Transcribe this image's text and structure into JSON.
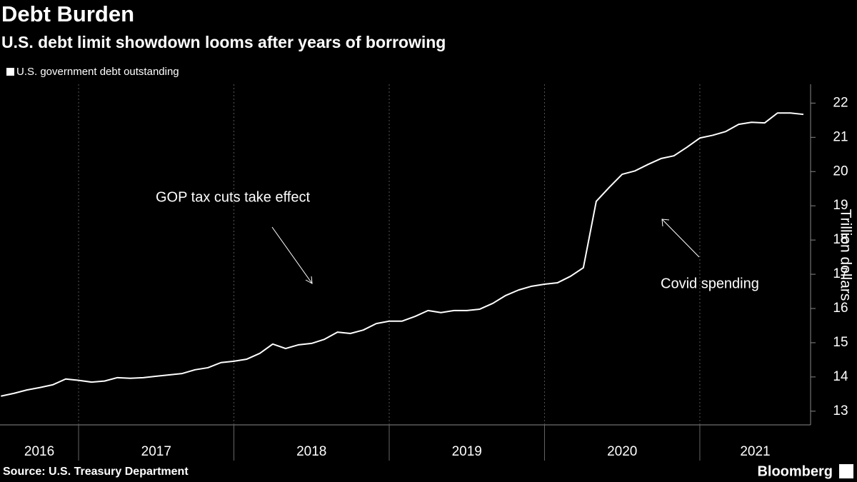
{
  "chart_data": {
    "type": "line",
    "title": "Debt Burden",
    "subtitle": "U.S. debt limit showdown looms after years of borrowing",
    "y_label": "Trillion dollars",
    "source": "Source: U.S. Treasury Department",
    "brand": "Bloomberg",
    "annotations": [
      "GOP tax cuts take effect",
      "Covid spending"
    ],
    "x": [
      2016.5,
      2016.583,
      2016.667,
      2016.75,
      2016.833,
      2016.917,
      2017,
      2017.083,
      2017.167,
      2017.25,
      2017.333,
      2017.417,
      2017.5,
      2017.583,
      2017.667,
      2017.75,
      2017.833,
      2017.917,
      2018,
      2018.083,
      2018.167,
      2018.25,
      2018.333,
      2018.417,
      2018.5,
      2018.583,
      2018.667,
      2018.75,
      2018.833,
      2018.917,
      2019,
      2019.083,
      2019.167,
      2019.25,
      2019.333,
      2019.417,
      2019.5,
      2019.583,
      2019.667,
      2019.75,
      2019.833,
      2019.917,
      2020,
      2020.083,
      2020.167,
      2020.25,
      2020.333,
      2020.417,
      2020.5,
      2020.583,
      2020.667,
      2020.75,
      2020.833,
      2020.917,
      2021,
      2021.083,
      2021.167,
      2021.25,
      2021.333,
      2021.417,
      2021.5,
      2021.583,
      2021.667
    ],
    "series": [
      {
        "name": "U.S. government debt outstanding",
        "color": "#ffffff",
        "values": [
          13.44,
          13.52,
          13.62,
          13.69,
          13.77,
          13.94,
          13.9,
          13.85,
          13.88,
          13.98,
          13.96,
          13.98,
          14.02,
          14.06,
          14.1,
          14.21,
          14.27,
          14.42,
          14.46,
          14.52,
          14.69,
          14.96,
          14.83,
          14.94,
          14.98,
          15.1,
          15.31,
          15.27,
          15.37,
          15.56,
          15.63,
          15.63,
          15.77,
          15.94,
          15.88,
          15.94,
          15.94,
          15.98,
          16.15,
          16.38,
          16.54,
          16.65,
          16.71,
          16.75,
          16.94,
          17.19,
          19.13,
          19.54,
          19.92,
          20.02,
          20.21,
          20.38,
          20.46,
          20.71,
          20.98,
          21.06,
          21.17,
          21.38,
          21.44,
          21.42,
          21.71,
          21.71,
          21.67
        ]
      }
    ],
    "xlim": [
      2016.494,
      2021.713
    ],
    "xticks": [
      2016,
      2017,
      2018,
      2019,
      2020,
      2021
    ],
    "ylim": [
      12.6,
      22.55
    ],
    "yticks": [
      13,
      14,
      15,
      16,
      17,
      18,
      19,
      20,
      21,
      22
    ],
    "grid": true
  }
}
